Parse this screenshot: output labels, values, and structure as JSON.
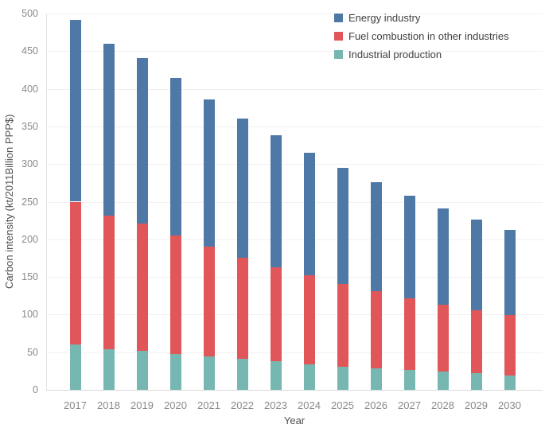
{
  "chart_data": {
    "type": "bar",
    "stacked": true,
    "title": "",
    "xlabel": "Year",
    "ylabel": "Carbon intensity (kt/2011Billion PPP$)",
    "categories": [
      "2017",
      "2018",
      "2019",
      "2020",
      "2021",
      "2022",
      "2023",
      "2024",
      "2025",
      "2026",
      "2027",
      "2028",
      "2029",
      "2030"
    ],
    "series": [
      {
        "name": "Energy industry",
        "color": "#4e79a7",
        "values": [
          242,
          228,
          220,
          209,
          196,
          184,
          175,
          163,
          154,
          145,
          136,
          128,
          120,
          113
        ]
      },
      {
        "name": "Fuel combustion in other industries",
        "color": "#e15759",
        "values": [
          190,
          178,
          169,
          157,
          146,
          135,
          125,
          118,
          110,
          102,
          96,
          89,
          84,
          80
        ]
      },
      {
        "name": "Industrial production",
        "color": "#76b7b2",
        "values": [
          60,
          54,
          52,
          48,
          44,
          41,
          38,
          34,
          31,
          29,
          26,
          24,
          22,
          19
        ]
      }
    ],
    "stack_order_bottom_to_top": [
      "Industrial production",
      "Fuel combustion in other industries",
      "Energy industry"
    ],
    "ylim": [
      0,
      500
    ],
    "yticks": [
      0,
      50,
      100,
      150,
      200,
      250,
      300,
      350,
      400,
      450,
      500
    ],
    "grid": true,
    "legend_position": "top-right",
    "legend": [
      "Energy industry",
      "Fuel combustion in other industries",
      "Industrial production"
    ]
  },
  "colors": {
    "energy_industry": "#4e79a7",
    "fuel_combustion": "#e15759",
    "industrial_production": "#76b7b2",
    "gridline": "#f2efef",
    "axis_line": "#d9d9d9",
    "tick_label": "#8a8a8a",
    "axis_title": "#4f4f4f",
    "legend_text": "#3f3f3f"
  }
}
